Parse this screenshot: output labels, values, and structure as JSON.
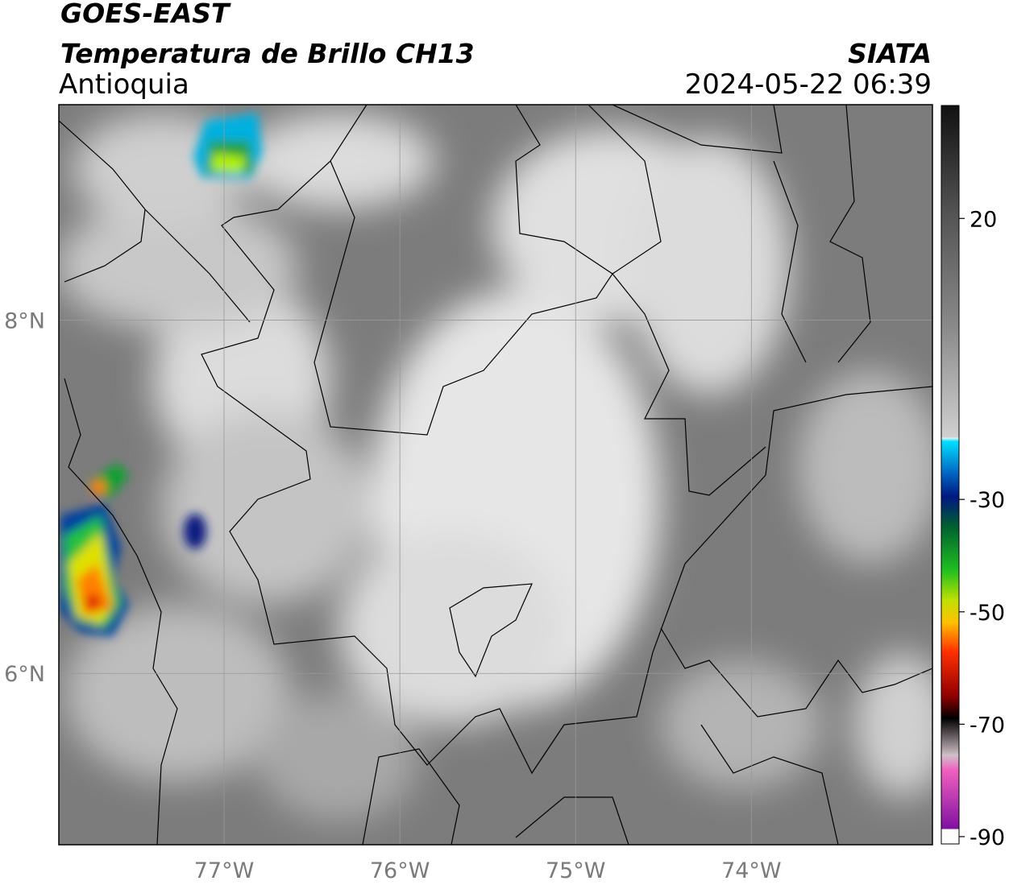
{
  "header": {
    "title": "GOES-EAST",
    "subtitle": "Temperatura de Brillo CH13",
    "region": "Antioquia",
    "source": "SIATA",
    "datetime": "2024-05-22 06:39"
  },
  "map": {
    "lonlim": [
      -77.94,
      -72.97
    ],
    "latlim": [
      5.03,
      9.22
    ],
    "lonticks": [
      {
        "value": -77,
        "label": "77°W"
      },
      {
        "value": -76,
        "label": "76°W"
      },
      {
        "value": -75,
        "label": "75°W"
      },
      {
        "value": -74,
        "label": "74°W"
      }
    ],
    "latticks": [
      {
        "value": 8,
        "label": "8°N"
      },
      {
        "value": 6,
        "label": "6°N"
      }
    ],
    "grid": true
  },
  "colorbar": {
    "lim": [
      -91.3,
      40.1
    ],
    "ticks": [
      20,
      -30,
      -50,
      -70,
      -90
    ]
  }
}
